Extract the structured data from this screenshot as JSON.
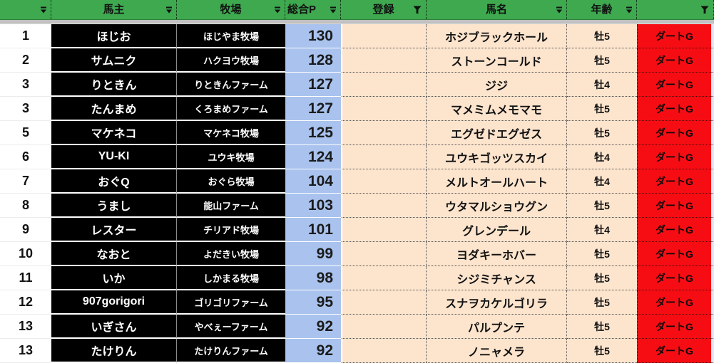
{
  "table": {
    "columns": [
      {
        "label": "",
        "filter": "dropdown"
      },
      {
        "label": "馬主",
        "filter": "dropdown"
      },
      {
        "label": "牧場",
        "filter": "dropdown"
      },
      {
        "label": "総合P",
        "filter": "dropdown"
      },
      {
        "label": "登録",
        "filter": "funnel"
      },
      {
        "label": "馬名",
        "filter": "dropdown"
      },
      {
        "label": "年齢",
        "filter": "dropdown"
      },
      {
        "label": "",
        "filter": "funnel"
      }
    ],
    "rows": [
      {
        "rank": "1",
        "owner": "ほじお",
        "ranch": "ほじやま牧場",
        "points": "130",
        "registration": "",
        "horse": "ホジブラックホール",
        "age": "牡5",
        "grade": "ダートG"
      },
      {
        "rank": "2",
        "owner": "サムニク",
        "ranch": "ハクヨウ牧場",
        "points": "128",
        "registration": "",
        "horse": "ストーンコールド",
        "age": "牡5",
        "grade": "ダートG"
      },
      {
        "rank": "3",
        "owner": "りときん",
        "ranch": "りときんファーム",
        "points": "127",
        "registration": "",
        "horse": "ジジ",
        "age": "牡4",
        "grade": "ダートG"
      },
      {
        "rank": "3",
        "owner": "たんまめ",
        "ranch": "くろまめファーム",
        "points": "127",
        "registration": "",
        "horse": "マメミムメモマモ",
        "age": "牡5",
        "grade": "ダートG"
      },
      {
        "rank": "5",
        "owner": "マケネコ",
        "ranch": "マケネコ牧場",
        "points": "125",
        "registration": "",
        "horse": "エグゼドエグゼス",
        "age": "牡5",
        "grade": "ダートG"
      },
      {
        "rank": "6",
        "owner": "YU-KI",
        "ranch": "ユウキ牧場",
        "points": "124",
        "registration": "",
        "horse": "ユウキゴッツスカイ",
        "age": "牡4",
        "grade": "ダートG"
      },
      {
        "rank": "7",
        "owner": "おぐQ",
        "ranch": "おぐら牧場",
        "points": "104",
        "registration": "",
        "horse": "メルトオールハート",
        "age": "牡4",
        "grade": "ダートG"
      },
      {
        "rank": "8",
        "owner": "うまし",
        "ranch": "能山ファーム",
        "points": "103",
        "registration": "",
        "horse": "ウタマルショウグン",
        "age": "牡5",
        "grade": "ダートG"
      },
      {
        "rank": "9",
        "owner": "レスター",
        "ranch": "チリアド牧場",
        "points": "101",
        "registration": "",
        "horse": "グレンデール",
        "age": "牡4",
        "grade": "ダートG"
      },
      {
        "rank": "10",
        "owner": "なおと",
        "ranch": "よだきい牧場",
        "points": "99",
        "registration": "",
        "horse": "ヨダキーホバー",
        "age": "牡5",
        "grade": "ダートG"
      },
      {
        "rank": "11",
        "owner": "いか",
        "ranch": "しかまる牧場",
        "points": "98",
        "registration": "",
        "horse": "シジミチャンス",
        "age": "牡5",
        "grade": "ダートG"
      },
      {
        "rank": "12",
        "owner": "907gorigori",
        "ranch": "ゴリゴリファーム",
        "points": "95",
        "registration": "",
        "horse": "スナヲカケルゴリラ",
        "age": "牡5",
        "grade": "ダートG"
      },
      {
        "rank": "13",
        "owner": "いぎさん",
        "ranch": "やべぇーファーム",
        "points": "92",
        "registration": "",
        "horse": "パルプンテ",
        "age": "牡5",
        "grade": "ダートG"
      },
      {
        "rank": "13",
        "owner": "たけりん",
        "ranch": "たけりんファーム",
        "points": "92",
        "registration": "",
        "horse": "ノニャメラ",
        "age": "牡5",
        "grade": "ダートG"
      }
    ]
  },
  "colors": {
    "header_green": "#3EA94F",
    "points_blue": "#A9C3EE",
    "cell_peach": "#FCE4CD",
    "grade_red": "#F60D13",
    "owner_black": "#000000"
  },
  "icons": {
    "dropdown": "filter-dropdown-icon",
    "funnel": "filter-funnel-icon"
  }
}
